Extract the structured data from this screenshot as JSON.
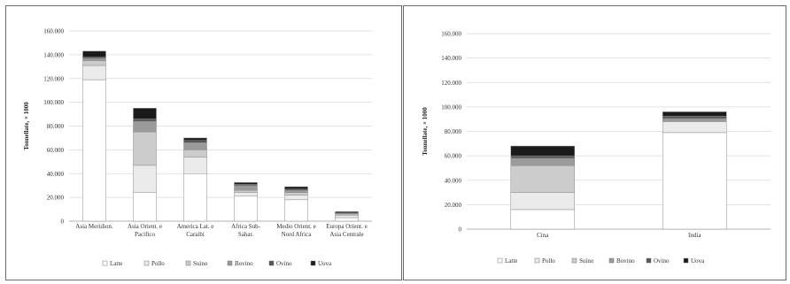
{
  "chart_data": [
    {
      "type": "bar",
      "stacked": true,
      "ylabel": "Tonnellate, × 1000",
      "ylim": [
        0,
        160000
      ],
      "yticks": [
        "0",
        "20.000",
        "40.000",
        "60.000",
        "80.000",
        "100.000",
        "120.000",
        "140.000",
        "160.000"
      ],
      "categories": [
        [
          "Asia Meridion."
        ],
        [
          "Asia Orient. e",
          "Pacifico"
        ],
        [
          "America Lat. e",
          "Caraibi"
        ],
        [
          "Africa Sub-",
          "Sahar."
        ],
        [
          "Medio Orient. e",
          "Nord Africa"
        ],
        [
          "Europa Orient. e",
          "Asia Centrale"
        ]
      ],
      "series": [
        {
          "name": "Latte",
          "color": "#ffffff",
          "values": [
            119000,
            24000,
            40000,
            21000,
            18000,
            3000
          ]
        },
        {
          "name": "Pollo",
          "color": "#ebebeb",
          "values": [
            12000,
            23000,
            14000,
            3000,
            4000,
            2000
          ]
        },
        {
          "name": "Suino",
          "color": "#cccccc",
          "values": [
            4000,
            28000,
            6000,
            2000,
            2000,
            1000
          ]
        },
        {
          "name": "Bovino",
          "color": "#9a9a9a",
          "values": [
            2000,
            9000,
            6000,
            4000,
            2000,
            500
          ]
        },
        {
          "name": "Ovino",
          "color": "#555555",
          "values": [
            1000,
            2000,
            2000,
            1000,
            1000,
            500
          ]
        },
        {
          "name": "Uova",
          "color": "#1a1a1a",
          "values": [
            5000,
            9000,
            2000,
            1500,
            2000,
            1000
          ]
        }
      ],
      "grid": true,
      "legend_position": "bottom"
    },
    {
      "type": "bar",
      "stacked": true,
      "ylabel": "Tonnellate, × 1000",
      "ylim": [
        0,
        160000
      ],
      "yticks": [
        "0",
        "20.000",
        "40.000",
        "60.000",
        "80.000",
        "100.000",
        "120.000",
        "140.000",
        "160.000"
      ],
      "categories": [
        [
          "Cina"
        ],
        [
          "India"
        ]
      ],
      "series": [
        {
          "name": "Latte",
          "color": "#ffffff",
          "values": [
            16000,
            79000
          ]
        },
        {
          "name": "Pollo",
          "color": "#ebebeb",
          "values": [
            14000,
            9000
          ]
        },
        {
          "name": "Suino",
          "color": "#cccccc",
          "values": [
            22000,
            0
          ]
        },
        {
          "name": "Bovino",
          "color": "#9a9a9a",
          "values": [
            6000,
            2500
          ]
        },
        {
          "name": "Ovino",
          "color": "#555555",
          "values": [
            2000,
            2000
          ]
        },
        {
          "name": "Uova",
          "color": "#1a1a1a",
          "values": [
            8000,
            3500
          ]
        }
      ],
      "grid": true,
      "legend_position": "bottom"
    }
  ]
}
